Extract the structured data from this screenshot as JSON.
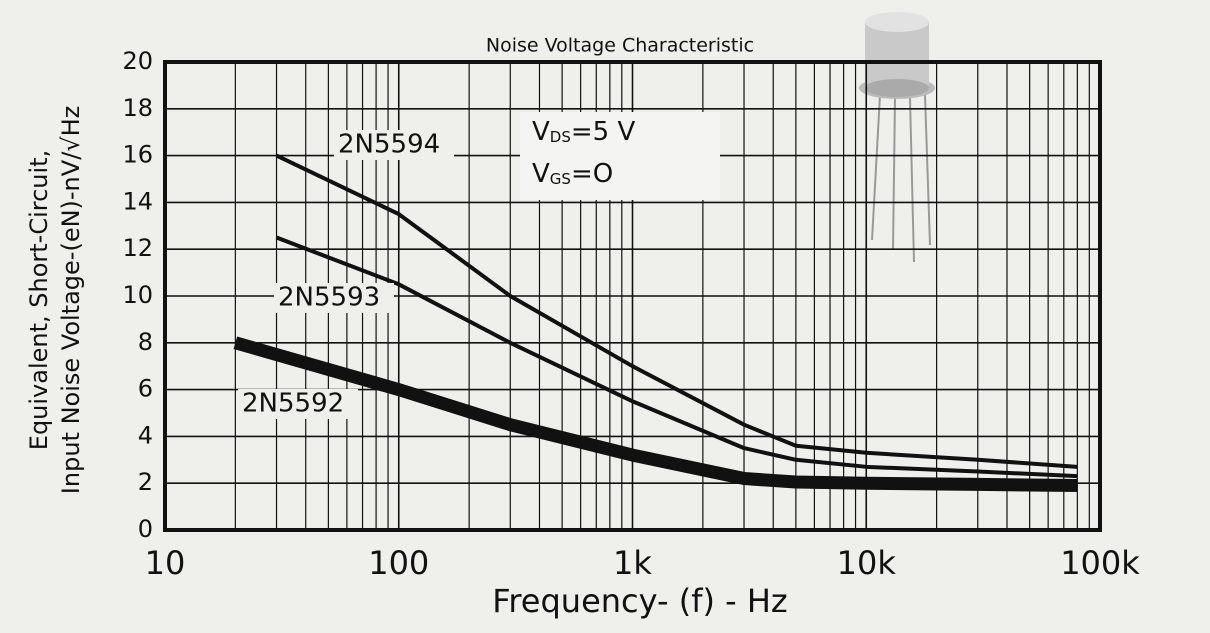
{
  "chart_data": {
    "type": "line",
    "title": "Noise Voltage Characteristic",
    "x_label": "Frequency- (f) - Hz",
    "y_label": [
      "Equivalent, Short-Circuit,",
      "Input Noise Voltage-(eN)-nV/√Hz"
    ],
    "annotations": [
      {
        "parts": [
          "V",
          "DS",
          "=5 V"
        ]
      },
      {
        "parts": [
          "V",
          "GS",
          "=O"
        ]
      }
    ],
    "x_scale": "log",
    "xlim": [
      10,
      100000
    ],
    "xticks": [
      10,
      100,
      {
        "value": 1000,
        "label": "1k"
      },
      {
        "value": 10000,
        "label": "10k"
      },
      {
        "value": 100000,
        "label": "100k"
      }
    ],
    "xminorticks": [
      20,
      30,
      40,
      50,
      60,
      70,
      80,
      90,
      200,
      300,
      400,
      500,
      600,
      700,
      800,
      900,
      2000,
      3000,
      4000,
      5000,
      6000,
      7000,
      8000,
      9000,
      20000,
      30000,
      40000,
      50000,
      60000,
      70000,
      80000,
      90000
    ],
    "ylim": [
      0,
      20
    ],
    "yticks": [
      0,
      2,
      4,
      6,
      8,
      10,
      12,
      14,
      16,
      18,
      20
    ],
    "grid": true,
    "series": [
      {
        "name": "2N5594",
        "color": "#111111",
        "width": 4,
        "x": [
          30,
          100,
          300,
          1000,
          3000,
          5000,
          10000,
          30000,
          80000
        ],
        "values": [
          16,
          13.5,
          10,
          7,
          4.5,
          3.6,
          3.3,
          3,
          2.7
        ]
      },
      {
        "name": "2N5593",
        "color": "#111111",
        "width": 4,
        "x": [
          30,
          100,
          300,
          1000,
          3000,
          5000,
          10000,
          30000,
          80000
        ],
        "values": [
          12.5,
          10.5,
          8,
          5.5,
          3.5,
          3,
          2.7,
          2.5,
          2.3
        ]
      },
      {
        "name": "2N5592",
        "color": "#111111",
        "width": 13,
        "x": [
          20,
          100,
          300,
          1000,
          3000,
          5000,
          10000,
          30000,
          80000
        ],
        "values": [
          8,
          6,
          4.5,
          3.2,
          2.2,
          2.05,
          2,
          1.95,
          1.9
        ]
      }
    ]
  }
}
